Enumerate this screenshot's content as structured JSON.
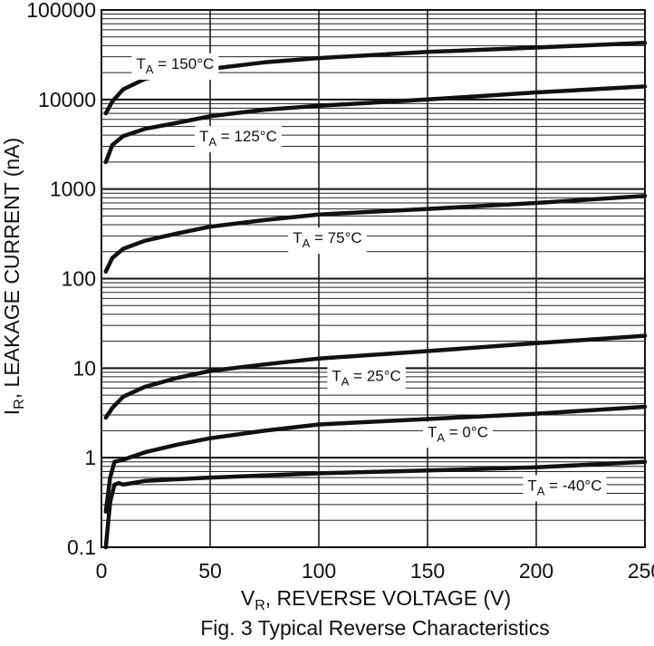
{
  "chart_data": {
    "type": "line",
    "title": "Fig. 3 Typical Reverse Characteristics",
    "xlabel": {
      "main": "V",
      "sub": "R",
      "rest": ", REVERSE VOLTAGE (V)"
    },
    "ylabel": {
      "main": "I",
      "sub": "R",
      "rest": ", LEAKAGE CURRENT (nA)"
    },
    "x_scale": "linear",
    "y_scale": "log",
    "xlim": [
      0,
      250
    ],
    "ylim": [
      0.1,
      100000
    ],
    "x_ticks": [
      0,
      50,
      100,
      150,
      200,
      250
    ],
    "x_tick_labels": [
      "0",
      "50",
      "100",
      "150",
      "200",
      "250"
    ],
    "y_ticks": [
      0.1,
      1,
      10,
      100,
      1000,
      10000,
      100000
    ],
    "y_tick_labels": [
      "0.1",
      "1",
      "10",
      "100",
      "1000",
      "10000",
      "100000"
    ],
    "grid": true,
    "series": [
      {
        "name": "T_A = 150°C",
        "label_main": "T",
        "label_sub": "A",
        "label_rest": " = 150°C",
        "label_at": [
          16,
          22000
        ],
        "points": [
          [
            2,
            7000
          ],
          [
            5,
            9500
          ],
          [
            10,
            13000
          ],
          [
            20,
            17000
          ],
          [
            35,
            20000
          ],
          [
            50,
            22000
          ],
          [
            75,
            26000
          ],
          [
            100,
            29000
          ],
          [
            150,
            34000
          ],
          [
            200,
            38000
          ],
          [
            250,
            43000
          ]
        ]
      },
      {
        "name": "T_A = 125°C",
        "label_main": "T",
        "label_sub": "A",
        "label_rest": " = 125°C",
        "label_at": [
          45,
          3400
        ],
        "points": [
          [
            2,
            2000
          ],
          [
            5,
            3100
          ],
          [
            10,
            3900
          ],
          [
            20,
            4700
          ],
          [
            35,
            5500
          ],
          [
            50,
            6500
          ],
          [
            75,
            7700
          ],
          [
            100,
            8500
          ],
          [
            150,
            10000
          ],
          [
            200,
            12000
          ],
          [
            250,
            14000
          ]
        ]
      },
      {
        "name": "T_A = 75°C",
        "label_main": "T",
        "label_sub": "A",
        "label_rest": " = 75°C",
        "label_at": [
          88,
          250
        ],
        "points": [
          [
            2,
            120
          ],
          [
            5,
            170
          ],
          [
            10,
            215
          ],
          [
            20,
            265
          ],
          [
            35,
            320
          ],
          [
            50,
            380
          ],
          [
            75,
            450
          ],
          [
            100,
            520
          ],
          [
            150,
            600
          ],
          [
            200,
            700
          ],
          [
            250,
            840
          ]
        ]
      },
      {
        "name": "T_A = 25°C",
        "label_main": "T",
        "label_sub": "A",
        "label_rest": " = 25°C",
        "label_at": [
          106,
          7.2
        ],
        "points": [
          [
            2,
            2.8
          ],
          [
            5,
            3.6
          ],
          [
            10,
            4.8
          ],
          [
            20,
            6.2
          ],
          [
            35,
            7.8
          ],
          [
            50,
            9.3
          ],
          [
            75,
            11
          ],
          [
            100,
            12.8
          ],
          [
            150,
            15.5
          ],
          [
            200,
            19
          ],
          [
            250,
            23
          ]
        ]
      },
      {
        "name": "T_A = 0°C",
        "label_main": "T",
        "label_sub": "A",
        "label_rest": " = 0°C",
        "label_at": [
          150,
          1.7
        ],
        "points": [
          [
            2,
            0.25
          ],
          [
            4,
            0.6
          ],
          [
            6,
            0.9
          ],
          [
            10,
            0.95
          ],
          [
            20,
            1.15
          ],
          [
            35,
            1.4
          ],
          [
            50,
            1.65
          ],
          [
            75,
            2.0
          ],
          [
            100,
            2.35
          ],
          [
            150,
            2.7
          ],
          [
            200,
            3.1
          ],
          [
            250,
            3.7
          ]
        ]
      },
      {
        "name": "T_A = -40°C",
        "label_main": "T",
        "label_sub": "A",
        "label_rest": " = -40°C",
        "label_at": [
          196,
          0.43
        ],
        "points": [
          [
            2,
            0.1
          ],
          [
            4,
            0.32
          ],
          [
            6,
            0.5
          ],
          [
            8,
            0.52
          ],
          [
            10,
            0.5
          ],
          [
            20,
            0.55
          ],
          [
            50,
            0.6
          ],
          [
            100,
            0.67
          ],
          [
            150,
            0.72
          ],
          [
            200,
            0.78
          ],
          [
            250,
            0.9
          ]
        ]
      }
    ]
  }
}
